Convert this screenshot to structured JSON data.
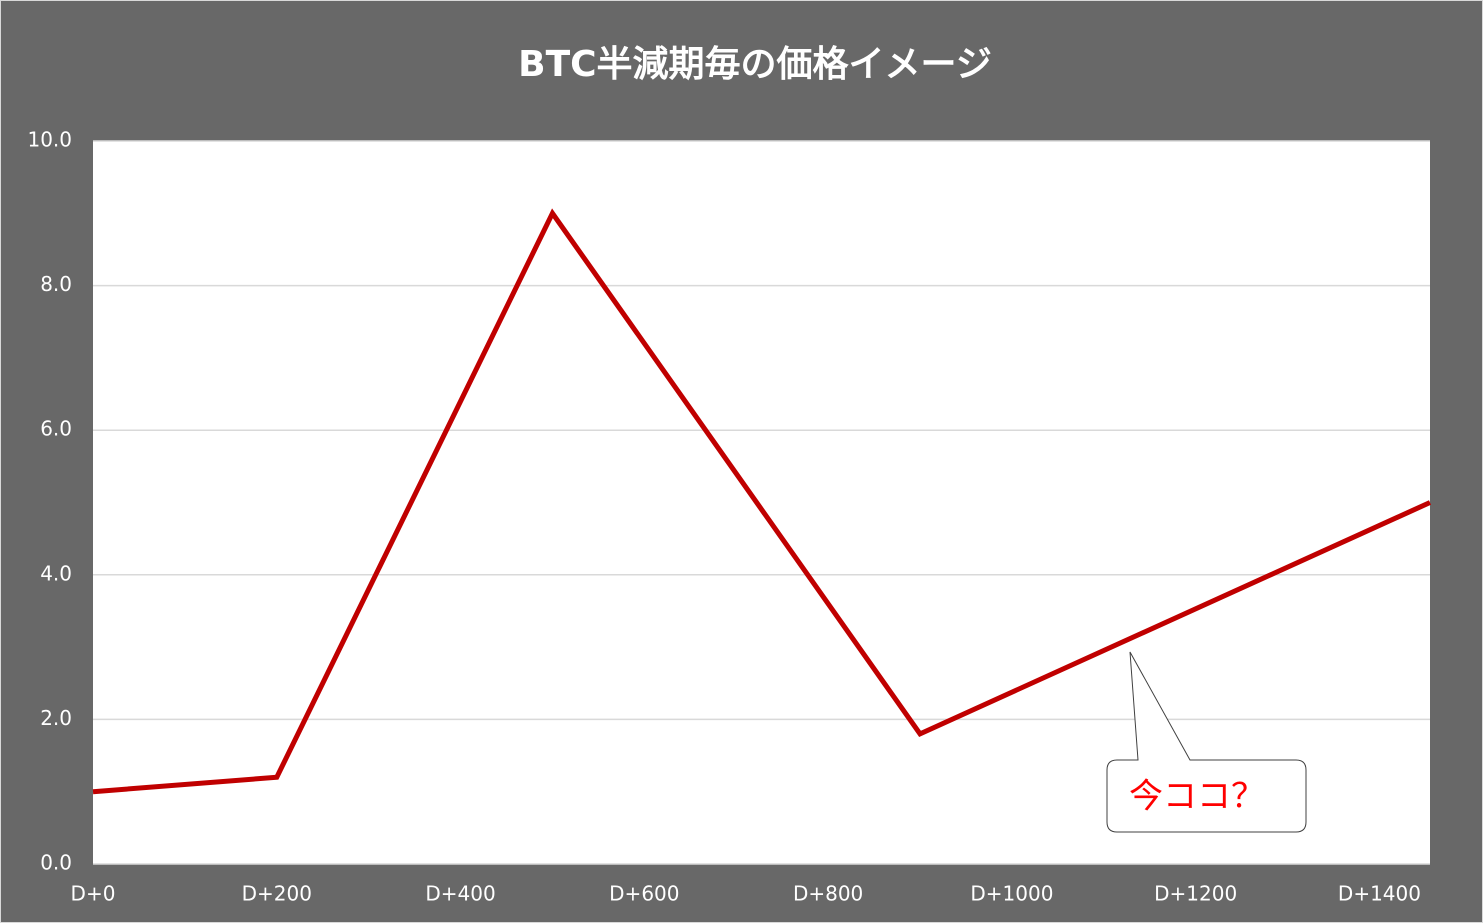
{
  "chart_data": {
    "type": "line",
    "title": "BTC半減期毎の価格イメージ",
    "x": [
      0,
      200,
      500,
      900,
      1455
    ],
    "series": [
      {
        "name": null,
        "color": "#c00000",
        "values": [
          1.0,
          1.2,
          9.0,
          1.8,
          5.0
        ]
      }
    ],
    "xlim": [
      0,
      1455
    ],
    "xticks": [
      {
        "value": 0,
        "label": "D+0"
      },
      {
        "value": 200,
        "label": "D+200"
      },
      {
        "value": 400,
        "label": "D+400"
      },
      {
        "value": 600,
        "label": "D+600"
      },
      {
        "value": 800,
        "label": "D+800"
      },
      {
        "value": 1000,
        "label": "D+1000"
      },
      {
        "value": 1200,
        "label": "D+1200"
      },
      {
        "value": 1400,
        "label": "D+1400"
      }
    ],
    "ylim": [
      0,
      10
    ],
    "yticks": [
      {
        "value": 0,
        "label": "0.0"
      },
      {
        "value": 2,
        "label": "2.0"
      },
      {
        "value": 4,
        "label": "4.0"
      },
      {
        "value": 6,
        "label": "6.0"
      },
      {
        "value": 8,
        "label": "8.0"
      },
      {
        "value": 10,
        "label": "10.0"
      }
    ],
    "grid": true,
    "annotations": [
      {
        "text": "今ココ？"
      }
    ]
  }
}
